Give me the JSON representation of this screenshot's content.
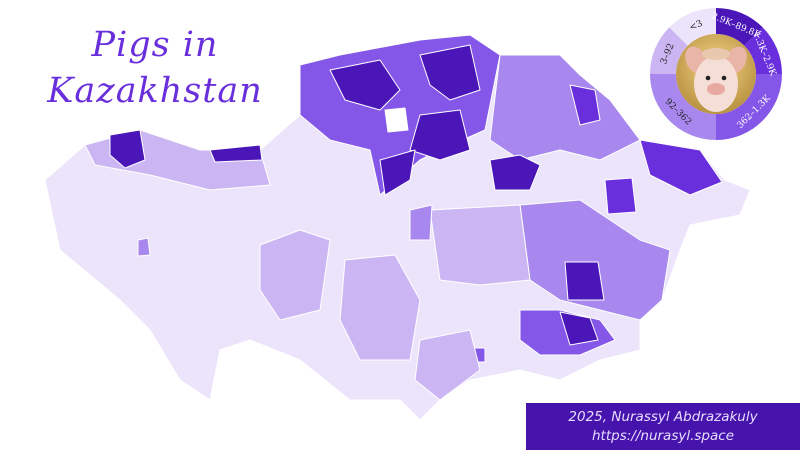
{
  "title": {
    "line1": "Pigs in",
    "line2": "Kazakhstan"
  },
  "legend": {
    "classes": [
      {
        "label": "<3",
        "color": "#ece4fb"
      },
      {
        "label": "3–92",
        "color": "#cbb6f3"
      },
      {
        "label": "92–362",
        "color": "#a888ee"
      },
      {
        "label": "362–1.3K",
        "color": "#8457e8"
      },
      {
        "label": "1.3K–2.9K",
        "color": "#6a2fdc"
      },
      {
        "label": "2.9K–89.8K",
        "color": "#4a16b8"
      }
    ],
    "center_image": "pig-photo"
  },
  "footer": {
    "credit": "2025, Nurassyl Abdrazakuly",
    "url": "https://nurasyl.space"
  },
  "colors": {
    "accent": "#6a2fdc",
    "footer_bg": "#4614ad"
  }
}
